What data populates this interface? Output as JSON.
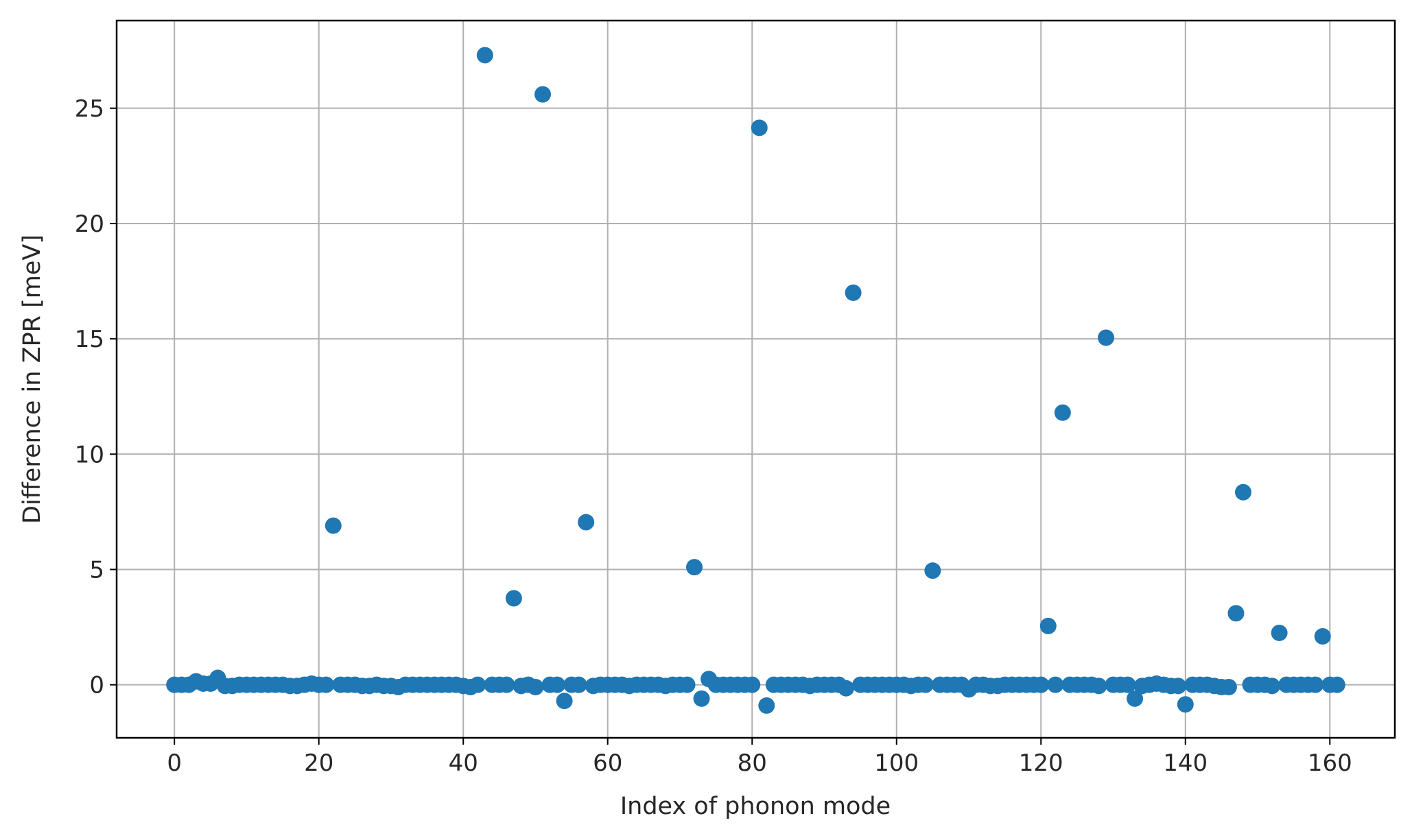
{
  "chart_data": {
    "type": "scatter",
    "title": "",
    "xlabel": "Index of phonon mode",
    "ylabel": "Difference in ZPR [meV]",
    "xlim": [
      -8,
      169
    ],
    "ylim": [
      -2.3,
      28.8
    ],
    "xticks": [
      0,
      20,
      40,
      60,
      80,
      100,
      120,
      140,
      160
    ],
    "yticks": [
      0,
      5,
      10,
      15,
      20,
      25
    ],
    "grid": true,
    "marker_color": "#1f77b4",
    "x": [
      0,
      1,
      2,
      3,
      4,
      5,
      6,
      7,
      8,
      9,
      10,
      11,
      12,
      13,
      14,
      15,
      16,
      17,
      18,
      19,
      20,
      21,
      22,
      23,
      24,
      25,
      26,
      27,
      28,
      29,
      30,
      31,
      32,
      33,
      34,
      35,
      36,
      37,
      38,
      39,
      40,
      41,
      42,
      43,
      44,
      45,
      46,
      47,
      48,
      49,
      50,
      51,
      52,
      53,
      54,
      55,
      56,
      57,
      58,
      59,
      60,
      61,
      62,
      63,
      64,
      65,
      66,
      67,
      68,
      69,
      70,
      71,
      72,
      73,
      74,
      75,
      76,
      77,
      78,
      79,
      80,
      81,
      82,
      83,
      84,
      85,
      86,
      87,
      88,
      89,
      90,
      91,
      92,
      93,
      94,
      95,
      96,
      97,
      98,
      99,
      100,
      101,
      102,
      103,
      104,
      105,
      106,
      107,
      108,
      109,
      110,
      111,
      112,
      113,
      114,
      115,
      116,
      117,
      118,
      119,
      120,
      121,
      122,
      123,
      124,
      125,
      126,
      127,
      128,
      129,
      130,
      131,
      132,
      133,
      134,
      135,
      136,
      137,
      138,
      139,
      140,
      141,
      142,
      143,
      144,
      145,
      146,
      147,
      148,
      149,
      150,
      151,
      152,
      153,
      154,
      155,
      156,
      157,
      158,
      159,
      160,
      161
    ],
    "y": [
      0.0,
      0.0,
      0.0,
      0.15,
      0.05,
      0.05,
      0.3,
      -0.05,
      -0.05,
      0.0,
      0.0,
      0.0,
      0.0,
      0.0,
      0.0,
      0.0,
      -0.05,
      -0.05,
      0.0,
      0.05,
      0.0,
      0.0,
      6.9,
      0.0,
      0.0,
      0.0,
      -0.05,
      -0.05,
      0.0,
      -0.05,
      -0.05,
      -0.1,
      0.0,
      0.0,
      0.0,
      0.0,
      0.0,
      0.0,
      0.0,
      0.0,
      -0.05,
      -0.1,
      0.0,
      27.3,
      0.0,
      0.0,
      0.0,
      3.75,
      -0.05,
      0.0,
      -0.1,
      25.6,
      0.0,
      0.0,
      -0.7,
      0.0,
      0.0,
      7.05,
      -0.05,
      0.0,
      0.0,
      0.0,
      0.0,
      -0.05,
      0.0,
      0.0,
      0.0,
      0.0,
      -0.05,
      0.0,
      0.0,
      0.0,
      5.1,
      -0.6,
      0.25,
      0.0,
      0.0,
      0.0,
      0.0,
      0.0,
      0.0,
      24.15,
      -0.9,
      0.0,
      0.0,
      0.0,
      0.0,
      0.0,
      -0.05,
      0.0,
      0.0,
      0.0,
      0.0,
      -0.15,
      17.0,
      0.0,
      0.0,
      0.0,
      0.0,
      0.0,
      0.0,
      0.0,
      -0.05,
      0.0,
      0.0,
      4.95,
      0.0,
      0.0,
      0.0,
      0.0,
      -0.2,
      0.0,
      0.0,
      -0.05,
      -0.05,
      0.0,
      0.0,
      0.0,
      0.0,
      0.0,
      0.0,
      2.55,
      0.0,
      11.8,
      0.0,
      0.0,
      0.0,
      0.0,
      -0.05,
      15.05,
      0.0,
      0.0,
      0.0,
      -0.6,
      -0.05,
      0.0,
      0.05,
      0.0,
      -0.05,
      -0.05,
      -0.85,
      0.0,
      0.0,
      0.0,
      -0.05,
      -0.1,
      -0.1,
      3.1,
      8.35,
      0.0,
      0.0,
      0.0,
      -0.05,
      2.25,
      0.0,
      0.0,
      0.0,
      0.0,
      0.0,
      2.1,
      0.0,
      0.0
    ]
  }
}
